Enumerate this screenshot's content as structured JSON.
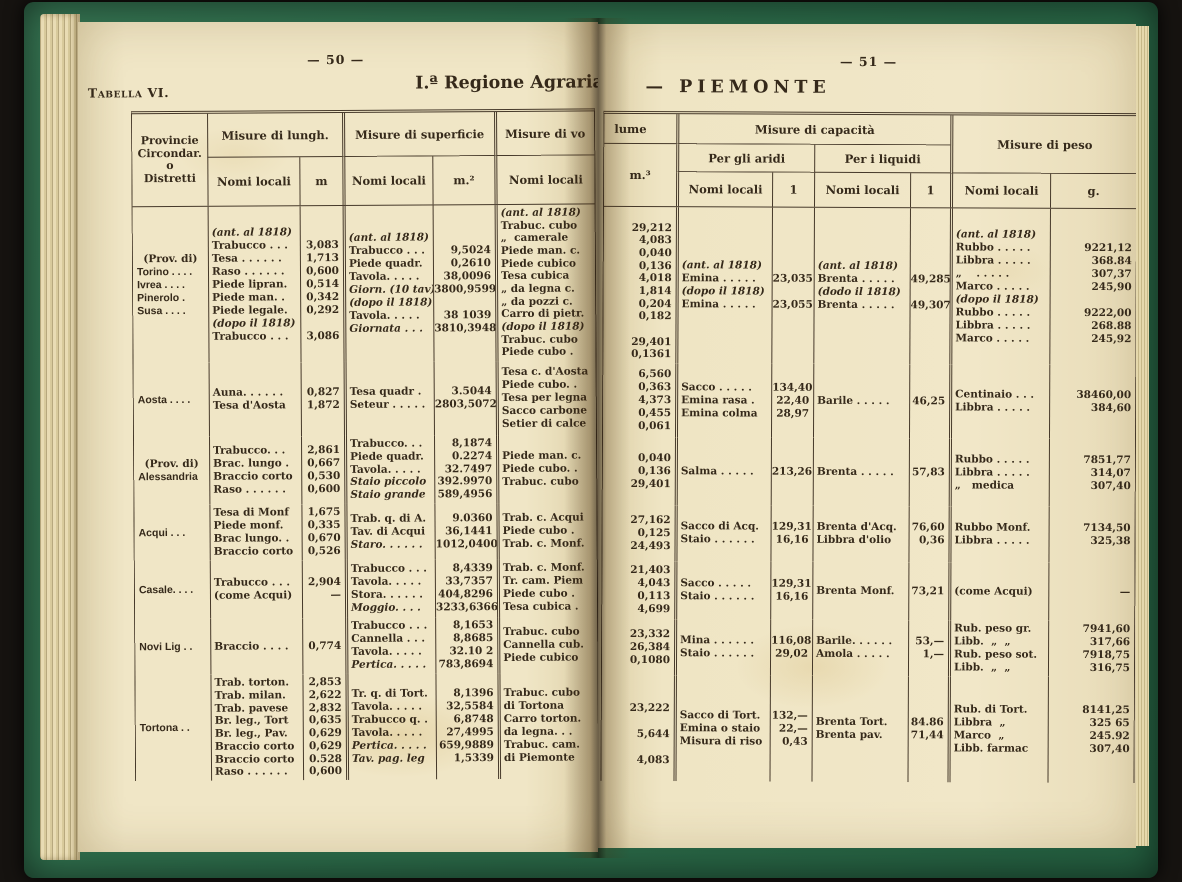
{
  "colors": {
    "cover_green": "#2c6a49",
    "page_cream": "#efe5c4",
    "ink": "#35291a"
  },
  "book": {
    "left_page_number": "— 50 —",
    "right_page_number": "— 51 —",
    "table_label": "Tabella VI.",
    "title_left": "I.ª Regione Agraria",
    "title_right": "— PIEMONTE"
  },
  "headers": {
    "province": [
      "Provincie",
      "Circondar.",
      "o",
      "Distretti"
    ],
    "length_title": "Misure di lungh.",
    "surface_title": "Misure di superficie",
    "volume_title_left": "Misure di vo",
    "volume_title_right": "lume",
    "capacity_title": "Misure di capacità",
    "aridi_title": "Per gli aridi",
    "liquidi_title": "Per i liquidi",
    "weight_title": "Misure di peso",
    "nomi_locali": "Nomi locali",
    "unit_m": "m",
    "unit_m2": "m.²",
    "unit_m3": "m.³",
    "unit_l": "1",
    "unit_g": "g."
  },
  "groups": [
    {
      "prov": [
        "(Prov. di)",
        "Torino . . . .",
        "Ivrea . . . .",
        "Pinerolo .",
        "Susa . . . ."
      ],
      "lung": [
        {
          "n": "(ant. al 1818)",
          "i": 1
        },
        {
          "n": "Trabucco . . .",
          "v": "3,083"
        },
        {
          "n": "Tesa . . . . . .",
          "v": "1,713"
        },
        {
          "n": "Raso . . . . . .",
          "v": "0,600"
        },
        {
          "n": "Piede lipran.",
          "v": "0,514"
        },
        {
          "n": "Piede man. .",
          "v": "0,342"
        },
        {
          "n": "Piede legale.",
          "v": "0,292"
        },
        {
          "n": "(dopo il 1818)",
          "i": 1
        },
        {
          "n": "Trabucco . . .",
          "v": "3,086"
        }
      ],
      "sup": [
        {
          "n": "(ant. al 1818)",
          "i": 1
        },
        {
          "n": "Trabucco . . .",
          "v": "9,5024"
        },
        {
          "n": "Piede quadr.",
          "v": "0,2610"
        },
        {
          "n": "Tavola. . . . .",
          "v": "38,0096"
        },
        {
          "n": "Giorn. (10 tav)",
          "v": "3800,9599",
          "i": 1
        },
        {
          "n": "(dopo il 1818)",
          "i": 1
        },
        {
          "n": "Tavola. . . . .",
          "v": "38 1039"
        },
        {
          "n": "Giornata . . .",
          "v": "3810,3948",
          "i": 1
        }
      ],
      "vol_n": [
        {
          "n": "(ant. al 1818)",
          "i": 1
        },
        {
          "n": "Trabuc. cubo"
        },
        {
          "n": "„  camerale"
        },
        {
          "n": "Piede man. c."
        },
        {
          "n": "Piede cubico"
        },
        {
          "n": "Tesa cubica"
        },
        {
          "n": "„ da legna c."
        },
        {
          "n": "„ da pozzi c."
        },
        {
          "n": "Carro di pietr."
        },
        {
          "n": "(dopo il 1818)",
          "i": 1
        },
        {
          "n": "Trabuc. cubo"
        },
        {
          "n": "Piede cubo ."
        }
      ],
      "vol_v": [
        "",
        "29,212",
        "4,083",
        "0,040",
        "0,136",
        "4,018",
        "1,814",
        "0,204",
        "0,182",
        "",
        "29,401",
        "0,1361"
      ],
      "aridi": [
        {
          "n": "(ant. al 1818)",
          "i": 1
        },
        {
          "n": "Emina . . . . .",
          "v": "23,035"
        },
        {
          "n": "(dopo il 1818)",
          "i": 1
        },
        {
          "n": "Emina . . . . .",
          "v": "23,055"
        }
      ],
      "liq": [
        {
          "n": "(ant. al 1818)",
          "i": 1
        },
        {
          "n": "Brenta . . . . .",
          "v": "49,285"
        },
        {
          "n": "(dodo il 1818)",
          "i": 1
        },
        {
          "n": "Brenta . . . . .",
          "v": "49,307"
        }
      ],
      "peso": [
        {
          "n": "(ant. al 1818)",
          "i": 1
        },
        {
          "n": "Rubbo . . . . .",
          "v": "9221,12"
        },
        {
          "n": "Libbra . . . . .",
          "v": "368.84"
        },
        {
          "n": "„    . . . . .",
          "v": "307,37"
        },
        {
          "n": "Marco . . . . .",
          "v": "245,90"
        },
        {
          "n": "(dopo il 1818)",
          "i": 1
        },
        {
          "n": "Rubbo . . . . .",
          "v": "9222,00"
        },
        {
          "n": "Libbra . . . . .",
          "v": "268.88"
        },
        {
          "n": "Marco . . . . .",
          "v": "245,92"
        }
      ]
    },
    {
      "prov": [
        "Aosta . . . ."
      ],
      "lung": [
        {
          "n": "Auna. . . . . .",
          "v": "0,827"
        },
        {
          "n": "Tesa d'Aosta",
          "v": "1,872"
        }
      ],
      "sup": [
        {
          "n": "Tesa quadr .",
          "v": "3.5044"
        },
        {
          "n": "Seteur . . . . .",
          "v": "2803,5072"
        }
      ],
      "vol_n": [
        {
          "n": "Tesa c. d'Aosta"
        },
        {
          "n": "Piede cubo. ."
        },
        {
          "n": "Tesa per legna"
        },
        {
          "n": "Sacco carbone"
        },
        {
          "n": "Setier di calce"
        }
      ],
      "vol_v": [
        "6,560",
        "0,363",
        "4,373",
        "0,455",
        "0,061"
      ],
      "aridi": [
        {
          "n": "Sacco . . . . .",
          "v": "134,40"
        },
        {
          "n": "Emina rasa .",
          "v": "22,40"
        },
        {
          "n": "Emina colma",
          "v": "28,97"
        }
      ],
      "liq": [
        {
          "n": "Barile . . . . .",
          "v": "46,25"
        }
      ],
      "peso": [
        {
          "n": "Centinaio . . .",
          "v": "38460,00"
        },
        {
          "n": "Libbra . . . . .",
          "v": "384,60"
        }
      ]
    },
    {
      "prov": [
        "(Prov. di)",
        "Alessandria"
      ],
      "lung": [
        {
          "n": "Trabucco. . .",
          "v": "2,861"
        },
        {
          "n": "Brac. lungo .",
          "v": "0,667"
        },
        {
          "n": "Braccio corto",
          "v": "0,530"
        },
        {
          "n": "Raso . . . . . .",
          "v": "0,600"
        }
      ],
      "sup": [
        {
          "n": "Trabucco. . .",
          "v": "8,1874"
        },
        {
          "n": "Piede quadr.",
          "v": "0.2274"
        },
        {
          "n": "Tavola. . . . .",
          "v": "32.7497"
        },
        {
          "n": "Staio piccolo",
          "v": "392.9970",
          "i": 1
        },
        {
          "n": "Staio grande",
          "v": "589,4956",
          "i": 1
        }
      ],
      "vol_n": [
        {
          "n": "Piede man. c."
        },
        {
          "n": "Piede cubo. ."
        },
        {
          "n": "Trabuc. cubo"
        }
      ],
      "vol_v": [
        "0,040",
        "0,136",
        "29,401"
      ],
      "aridi": [
        {
          "n": "Salma . . . . .",
          "v": "213,26"
        }
      ],
      "liq": [
        {
          "n": "Brenta . . . . .",
          "v": "57,83"
        }
      ],
      "peso": [
        {
          "n": "Rubbo . . . . .",
          "v": "7851,77"
        },
        {
          "n": "Libbra . . . . .",
          "v": "314,07"
        },
        {
          "n": "„   medica",
          "v": "307,40"
        }
      ]
    },
    {
      "prov": [
        "Acqui  . . ."
      ],
      "lung": [
        {
          "n": "Tesa di Monf",
          "v": "1,675"
        },
        {
          "n": "Piede monf.",
          "v": "0,335"
        },
        {
          "n": "Brac lungo. .",
          "v": "0,670"
        },
        {
          "n": "Braccio corto",
          "v": "0,526"
        }
      ],
      "sup": [
        {
          "n": "Trab. q. di A.",
          "v": "9.0360"
        },
        {
          "n": "Tav. di Acqui",
          "v": "36,1441"
        },
        {
          "n": "Staro. . . . . .",
          "v": "1012,0400",
          "i": 1
        }
      ],
      "vol_n": [
        {
          "n": "Trab. c. Acqui"
        },
        {
          "n": "Piede cubo ."
        },
        {
          "n": "Trab. c. Monf."
        }
      ],
      "vol_v": [
        "27,162",
        "0,125",
        "24,493"
      ],
      "aridi": [
        {
          "n": "Sacco di Acq.",
          "v": "129,31"
        },
        {
          "n": "Staio . . . . . .",
          "v": "16,16"
        }
      ],
      "liq": [
        {
          "n": "Brenta d'Acq.",
          "v": "76,60"
        },
        {
          "n": "Libbra d'olio",
          "v": "0,36"
        }
      ],
      "peso": [
        {
          "n": "Rubbo Monf.",
          "v": "7134,50"
        },
        {
          "n": "Libbra . . . . .",
          "v": "325,38"
        }
      ]
    },
    {
      "prov": [
        "Casale. . . ."
      ],
      "lung": [
        {
          "n": "Trabucco . . .",
          "v": "2,904"
        },
        {
          "n": "(come Acqui)",
          "v": "—"
        }
      ],
      "sup": [
        {
          "n": "Trabucco . . .",
          "v": "8,4339"
        },
        {
          "n": "Tavola. . . . .",
          "v": "33,7357"
        },
        {
          "n": "Stora. . . . . .",
          "v": "404,8296"
        },
        {
          "n": "Moggio. . . .",
          "v": "3233,6366",
          "i": 1
        }
      ],
      "vol_n": [
        {
          "n": "Trab. c. Monf."
        },
        {
          "n": "Tr. cam. Piem"
        },
        {
          "n": "Piede cubo ."
        },
        {
          "n": "Tesa cubica ."
        }
      ],
      "vol_v": [
        "21,403",
        "4,043",
        "0,113",
        "4,699"
      ],
      "aridi": [
        {
          "n": "Sacco . . . . .",
          "v": "129,31"
        },
        {
          "n": "Staio . . . . . .",
          "v": "16,16"
        }
      ],
      "liq": [
        {
          "n": "Brenta Monf.",
          "v": "73,21"
        }
      ],
      "peso": [
        {
          "n": "(come Acqui)",
          "v": "—"
        }
      ]
    },
    {
      "prov": [
        "Novi Lig . ."
      ],
      "lung": [
        {
          "n": "Braccio . . . .",
          "v": "0,774"
        }
      ],
      "sup": [
        {
          "n": "Trabucco . . .",
          "v": "8,1653"
        },
        {
          "n": "Cannella . . .",
          "v": "8,8685"
        },
        {
          "n": "Tavola. . . . .",
          "v": "32.10 2"
        },
        {
          "n": "Pertica. . . . .",
          "v": "783,8694",
          "i": 1
        }
      ],
      "vol_n": [
        {
          "n": "Trabuc. cubo"
        },
        {
          "n": "Cannella cub."
        },
        {
          "n": "Piede cubico"
        }
      ],
      "vol_v": [
        "23,332",
        "26,384",
        "0,1080"
      ],
      "aridi": [
        {
          "n": "Mina . . . . . .",
          "v": "116,08"
        },
        {
          "n": "Staio . . . . . .",
          "v": "29,02"
        }
      ],
      "liq": [
        {
          "n": "Barile. . . . . .",
          "v": "53,—"
        },
        {
          "n": "Amola . . . . .",
          "v": "1,—"
        }
      ],
      "peso": [
        {
          "n": "Rub. peso gr.",
          "v": "7941,60"
        },
        {
          "n": "Libb.  „  „",
          "v": "317,66"
        },
        {
          "n": "Rub. peso sot.",
          "v": "7918,75"
        },
        {
          "n": "Libb.  „  „",
          "v": "316,75"
        }
      ]
    },
    {
      "prov": [
        "Tortona  . ."
      ],
      "lung": [
        {
          "n": "Trab. torton.",
          "v": "2,853"
        },
        {
          "n": "Trab. milan.",
          "v": "2,622"
        },
        {
          "n": "Trab. pavese",
          "v": "2,832"
        },
        {
          "n": "Br. leg., Tort",
          "v": "0,635"
        },
        {
          "n": "Br. leg., Pav.",
          "v": "0,629"
        },
        {
          "n": "Braccio corto",
          "v": "0,629"
        },
        {
          "n": "Braccio corto",
          "v": "0.528"
        },
        {
          "n": "Raso . . . . . .",
          "v": "0,600"
        }
      ],
      "sup": [
        {
          "n": "Tr. q. di Tort.",
          "v": "8,1396"
        },
        {
          "n": "Tavola. . . . .",
          "v": "32,5584"
        },
        {
          "n": "Trabucco q. .",
          "v": "6,8748"
        },
        {
          "n": "Tavola. . . . .",
          "v": "27,4995"
        },
        {
          "n": "Pertica. . . . .",
          "v": "659,9889",
          "i": 1
        },
        {
          "n": "Tav. pag. leg",
          "v": "1,5339",
          "i": 1
        }
      ],
      "vol_n": [
        {
          "n": "Trabuc. cubo"
        },
        {
          "n": "di Tortona"
        },
        {
          "n": "Carro torton."
        },
        {
          "n": "da legna. . ."
        },
        {
          "n": "Trabuc. cam."
        },
        {
          "n": "di Piemonte"
        }
      ],
      "vol_v": [
        "",
        "23,222",
        "",
        "5,644",
        "",
        "4,083"
      ],
      "aridi": [
        {
          "n": "Sacco di Tort.",
          "v": "132,—"
        },
        {
          "n": "Emina o staio",
          "v": "22,—"
        },
        {
          "n": "Misura di riso",
          "v": "0,43"
        }
      ],
      "liq": [
        {
          "n": "Brenta Tort.",
          "v": "84.86"
        },
        {
          "n": "Brenta pav.",
          "v": "71,44"
        }
      ],
      "peso": [
        {
          "n": "Rub. di Tort.",
          "v": "8141,25"
        },
        {
          "n": "Libbra  „",
          "v": "325 65"
        },
        {
          "n": "Marco  „",
          "v": "245.92"
        },
        {
          "n": "Libb. farmac",
          "v": "307,40"
        }
      ]
    }
  ]
}
